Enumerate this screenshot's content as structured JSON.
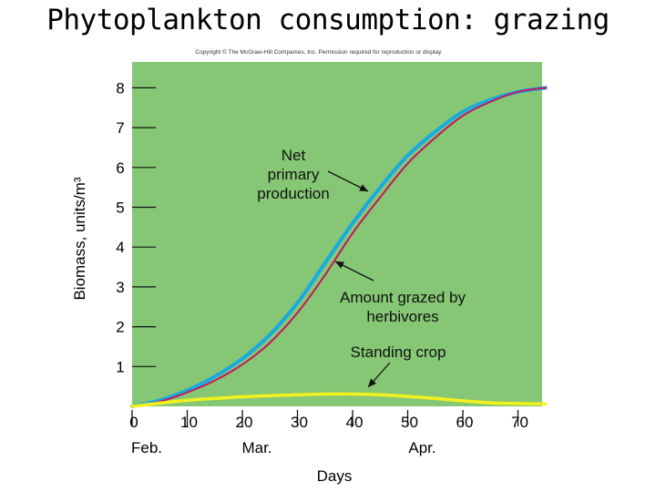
{
  "slide": {
    "title": "Phytoplankton consumption: grazing",
    "copyright": "Copyright © The McGraw-Hill Companies, Inc. Permission required for reproduction or display."
  },
  "colors": {
    "plot_bg": "#86c775",
    "net_primary": "#1aa9e0",
    "grazed": "#c2185b",
    "standing_crop": "#f2f21c"
  },
  "chart_data": {
    "type": "line",
    "xlabel": "Days",
    "ylabel": "Biomass, units/m³",
    "xlim": [
      0,
      75
    ],
    "ylim": [
      0,
      8.5
    ],
    "x_ticks": [
      0,
      10,
      20,
      30,
      40,
      50,
      60,
      70
    ],
    "y_ticks": [
      1,
      2,
      3,
      4,
      5,
      6,
      7,
      8
    ],
    "months": [
      {
        "label": "Feb.",
        "day": 0
      },
      {
        "label": "Mar.",
        "day": 20
      },
      {
        "label": "Apr.",
        "day": 50
      }
    ],
    "series": [
      {
        "name": "Net primary production",
        "x": [
          0,
          5,
          10,
          15,
          20,
          25,
          30,
          35,
          40,
          45,
          50,
          55,
          60,
          65,
          70,
          75
        ],
        "values": [
          0.0,
          0.15,
          0.4,
          0.75,
          1.2,
          1.8,
          2.6,
          3.6,
          4.6,
          5.5,
          6.3,
          6.9,
          7.4,
          7.7,
          7.9,
          8.0
        ]
      },
      {
        "name": "Amount grazed by herbivores",
        "x": [
          0,
          5,
          10,
          15,
          20,
          25,
          30,
          35,
          40,
          45,
          50,
          55,
          60,
          65,
          70,
          75
        ],
        "values": [
          0.0,
          0.12,
          0.35,
          0.65,
          1.05,
          1.6,
          2.35,
          3.3,
          4.35,
          5.25,
          6.1,
          6.75,
          7.3,
          7.65,
          7.9,
          8.0
        ]
      },
      {
        "name": "Standing crop",
        "x": [
          0,
          5,
          10,
          15,
          20,
          25,
          30,
          35,
          40,
          45,
          50,
          55,
          60,
          65,
          70,
          75
        ],
        "values": [
          0.0,
          0.08,
          0.15,
          0.2,
          0.24,
          0.27,
          0.29,
          0.31,
          0.31,
          0.29,
          0.25,
          0.2,
          0.14,
          0.09,
          0.07,
          0.06
        ]
      }
    ],
    "annotations": [
      {
        "text": [
          "Net",
          "primary",
          "production"
        ],
        "target": "Net primary production"
      },
      {
        "text": [
          "Amount grazed by",
          "herbivores"
        ],
        "target": "Amount grazed by herbivores"
      },
      {
        "text": [
          "Standing crop"
        ],
        "target": "Standing crop"
      }
    ]
  }
}
